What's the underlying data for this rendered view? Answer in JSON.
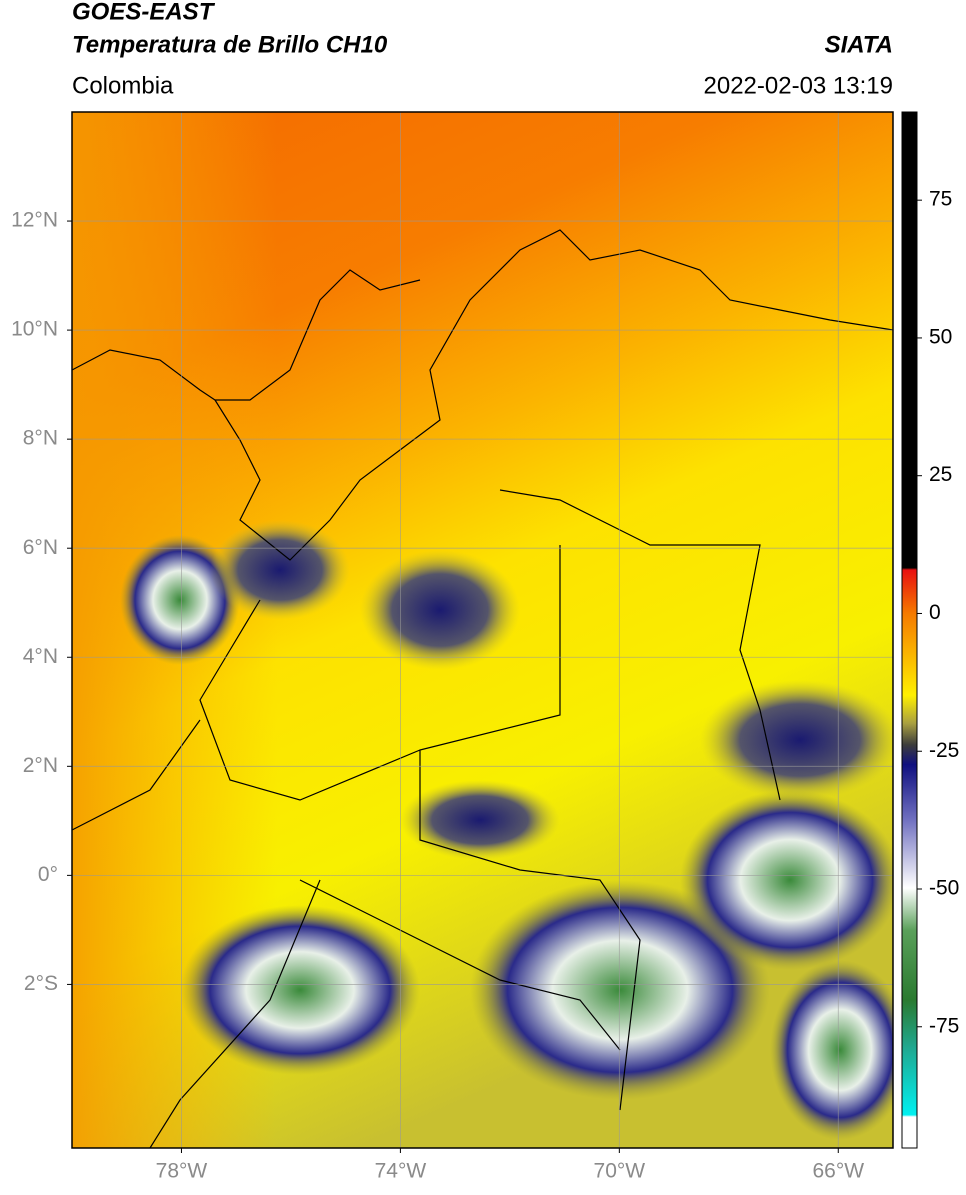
{
  "chart_data": {
    "type": "map",
    "title": "GOES-EAST",
    "subtitle": "Temperatura de Brillo CH10",
    "source": "SIATA",
    "region": "Colombia",
    "datetime": "2022-02-03 13:19",
    "xlim": [
      -80,
      -65
    ],
    "ylim": [
      -5,
      14
    ],
    "xticks": [
      {
        "value": -78,
        "label": "78°W"
      },
      {
        "value": -74,
        "label": "74°W"
      },
      {
        "value": -70,
        "label": "70°W"
      },
      {
        "value": -66,
        "label": "66°W"
      }
    ],
    "yticks": [
      {
        "value": 12,
        "label": "12°N"
      },
      {
        "value": 10,
        "label": "10°N"
      },
      {
        "value": 8,
        "label": "8°N"
      },
      {
        "value": 6,
        "label": "6°N"
      },
      {
        "value": 4,
        "label": "4°N"
      },
      {
        "value": 2,
        "label": "2°N"
      },
      {
        "value": 0,
        "label": "0°"
      },
      {
        "value": -2,
        "label": "2°S"
      }
    ],
    "grid": true,
    "colorbar": {
      "lim": [
        -97,
        91
      ],
      "ticks": [
        75,
        50,
        25,
        0,
        -25,
        -50,
        -75
      ]
    }
  }
}
